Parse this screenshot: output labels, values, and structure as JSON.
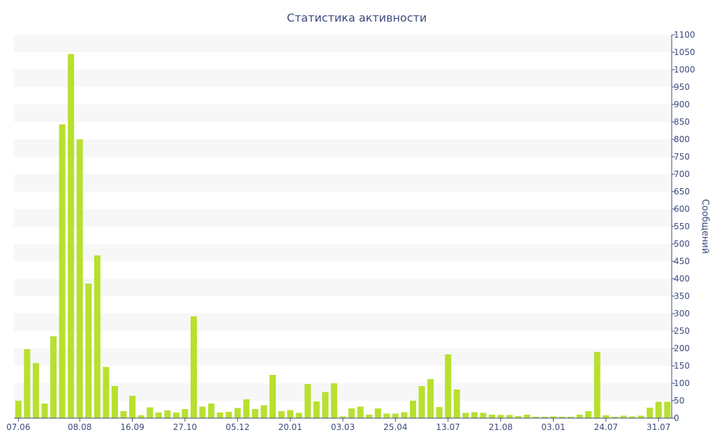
{
  "chart_data": {
    "type": "bar",
    "title": "Статистика активности",
    "ylabel": "Сообщений",
    "xlabel": "",
    "ylim": [
      0,
      1100
    ],
    "y_axis_side": "right",
    "yticks": [
      0,
      50,
      100,
      150,
      200,
      250,
      300,
      350,
      400,
      450,
      500,
      550,
      600,
      650,
      700,
      750,
      800,
      850,
      900,
      950,
      1000,
      1050,
      1100
    ],
    "xtick_labels": [
      "07.06",
      "08.08",
      "16.09",
      "27.10",
      "05.12",
      "20.01",
      "03.03",
      "25.04",
      "13.07",
      "21.08",
      "03.01",
      "24.07",
      "31.07"
    ],
    "xtick_indices": [
      0,
      7,
      13,
      19,
      25,
      31,
      37,
      43,
      49,
      55,
      61,
      67,
      73
    ],
    "grid": "horizontal bands",
    "bar_color": "#b8e02f",
    "band_color": "#f7f7f7",
    "axis_color": "#3d4a7c",
    "values": [
      50,
      198,
      158,
      42,
      235,
      843,
      1045,
      800,
      386,
      467,
      147,
      92,
      20,
      64,
      8,
      31,
      16,
      22,
      16,
      26,
      292,
      33,
      42,
      16,
      18,
      29,
      54,
      26,
      37,
      124,
      20,
      23,
      15,
      98,
      48,
      75,
      100,
      5,
      28,
      33,
      10,
      28,
      13,
      13,
      17,
      50,
      92,
      112,
      32,
      183,
      82,
      15,
      17,
      15,
      10,
      9,
      9,
      6,
      10,
      4,
      4,
      5,
      4,
      4,
      10,
      20,
      190,
      8,
      4,
      7,
      5,
      7,
      30,
      47,
      47
    ]
  }
}
